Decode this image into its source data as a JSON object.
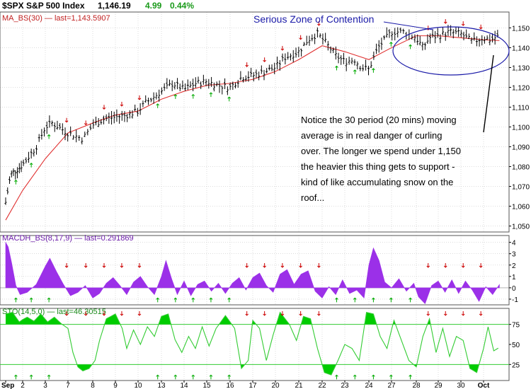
{
  "header": {
    "symbol": "$SPX S&P 500 Index",
    "last": "1,146.19",
    "change": "4.99",
    "change_pct": "0.44%"
  },
  "colors": {
    "background": "#ffffff",
    "grid": "#c8c8c8",
    "price_bar": "#000000",
    "moving_average": "#e03030",
    "macd_fill": "#9b30e8",
    "stochastic": "#33cc33",
    "stochastic_fill": "#00cc00",
    "up_arrow": "#00aa00",
    "down_arrow": "#cc0000",
    "annotation": "#1a1aa8",
    "change_text": "#1a9a1a"
  },
  "annotations": {
    "zone_label": "Serious Zone of Contention",
    "note_lines": [
      "Notice the 30 period (20 mins) moving",
      "average is in real danger of curling",
      "over.  The longer we spend under 1,150",
      "the heavier this thing gets to support -",
      "kind of like accumulating snow on the",
      "roof..."
    ]
  },
  "chart_data": [
    {
      "type": "ohlc",
      "panel": "price",
      "legend": "MA_BS(30) — last=1,143.5907",
      "y_ticks": [
        "1,150",
        "1,140",
        "1,130",
        "1,120",
        "1,110",
        "1,100",
        "1,090",
        "1,080",
        "1,070",
        "1,060",
        "1,050"
      ],
      "y_tick_values": [
        1150,
        1140,
        1130,
        1120,
        1110,
        1100,
        1090,
        1080,
        1070,
        1060,
        1050
      ],
      "ylim": [
        1047,
        1158
      ],
      "x_tick_labels": [
        "Sep",
        "2",
        "3",
        "7",
        "8",
        "9",
        "10",
        "13",
        "14",
        "15",
        "16",
        "17",
        "20",
        "21",
        "22",
        "23",
        "24",
        "27",
        "28",
        "29",
        "30",
        "Oct"
      ],
      "key_points": [
        [
          0,
          1062
        ],
        [
          0.3,
          1076
        ],
        [
          1.0,
          1081
        ],
        [
          1.6,
          1090
        ],
        [
          2.0,
          1100
        ],
        [
          2.3,
          1102
        ],
        [
          3.0,
          1097
        ],
        [
          3.6,
          1094
        ],
        [
          4.0,
          1101
        ],
        [
          4.5,
          1104
        ],
        [
          5.0,
          1105
        ],
        [
          5.5,
          1106
        ],
        [
          6.0,
          1108
        ],
        [
          6.3,
          1112
        ],
        [
          7.0,
          1118
        ],
        [
          7.5,
          1122
        ],
        [
          8.0,
          1119
        ],
        [
          8.5,
          1122
        ],
        [
          9.0,
          1123
        ],
        [
          9.5,
          1121
        ],
        [
          10.0,
          1120
        ],
        [
          10.5,
          1125
        ],
        [
          11.0,
          1126
        ],
        [
          11.3,
          1127
        ],
        [
          12.0,
          1130
        ],
        [
          12.4,
          1135
        ],
        [
          13.0,
          1138
        ],
        [
          13.4,
          1144
        ],
        [
          13.8,
          1147
        ],
        [
          14.2,
          1142
        ],
        [
          14.6,
          1136
        ],
        [
          15.0,
          1133
        ],
        [
          15.4,
          1134
        ],
        [
          15.7,
          1130
        ],
        [
          16.0,
          1129
        ],
        [
          16.4,
          1140
        ],
        [
          17.0,
          1148
        ],
        [
          17.5,
          1148
        ],
        [
          18.0,
          1145
        ],
        [
          18.3,
          1140
        ],
        [
          18.6,
          1145
        ],
        [
          19.0,
          1146
        ],
        [
          19.5,
          1148
        ],
        [
          20.0,
          1147
        ],
        [
          20.5,
          1143
        ],
        [
          21.0,
          1145
        ],
        [
          21.3,
          1144
        ],
        [
          21.7,
          1146
        ]
      ],
      "moving_average": [
        [
          0,
          1053
        ],
        [
          1,
          1068
        ],
        [
          2,
          1084
        ],
        [
          3,
          1097
        ],
        [
          4,
          1102
        ],
        [
          5,
          1106
        ],
        [
          6,
          1108
        ],
        [
          7,
          1114
        ],
        [
          8,
          1118
        ],
        [
          9,
          1121
        ],
        [
          10,
          1122
        ],
        [
          11,
          1124
        ],
        [
          12,
          1128
        ],
        [
          13,
          1134
        ],
        [
          14,
          1141
        ],
        [
          15,
          1138
        ],
        [
          16,
          1134
        ],
        [
          17,
          1140
        ],
        [
          18,
          1146
        ],
        [
          19,
          1146
        ],
        [
          20,
          1145
        ],
        [
          21,
          1144
        ],
        [
          21.7,
          1143.59
        ]
      ]
    },
    {
      "type": "area",
      "panel": "macd",
      "legend": "MACDH_BS(8,17,9) — last=0.291869",
      "y_ticks": [
        "4",
        "3",
        "2",
        "1",
        "0",
        "-1"
      ],
      "y_tick_values": [
        4,
        3,
        2,
        1,
        0,
        -1
      ],
      "ylim": [
        -1.5,
        4.6
      ],
      "key_points": [
        [
          0,
          4.0
        ],
        [
          0.15,
          3.6
        ],
        [
          0.35,
          2.2
        ],
        [
          0.6,
          0.2
        ],
        [
          0.85,
          -0.6
        ],
        [
          1.2,
          -0.4
        ],
        [
          1.6,
          0.3
        ],
        [
          2.0,
          1.9
        ],
        [
          2.2,
          2.6
        ],
        [
          2.5,
          1.4
        ],
        [
          2.8,
          0.3
        ],
        [
          3.1,
          -0.7
        ],
        [
          3.4,
          -0.4
        ],
        [
          3.7,
          0.2
        ],
        [
          4.0,
          -0.9
        ],
        [
          4.3,
          -0.5
        ],
        [
          4.6,
          0.4
        ],
        [
          4.9,
          0.9
        ],
        [
          5.2,
          0.2
        ],
        [
          5.5,
          -0.6
        ],
        [
          5.8,
          0.5
        ],
        [
          6.1,
          1.0
        ],
        [
          6.4,
          0.1
        ],
        [
          6.7,
          -0.6
        ],
        [
          7.0,
          1.0
        ],
        [
          7.2,
          2.4
        ],
        [
          7.45,
          0.8
        ],
        [
          7.7,
          -0.6
        ],
        [
          8.0,
          0.6
        ],
        [
          8.3,
          -0.7
        ],
        [
          8.6,
          0.3
        ],
        [
          8.9,
          0.6
        ],
        [
          9.2,
          -0.3
        ],
        [
          9.5,
          0.4
        ],
        [
          9.8,
          -0.5
        ],
        [
          10.1,
          0.4
        ],
        [
          10.4,
          0.9
        ],
        [
          10.7,
          -0.2
        ],
        [
          11.0,
          0.9
        ],
        [
          11.3,
          1.3
        ],
        [
          11.6,
          0.2
        ],
        [
          11.9,
          -0.4
        ],
        [
          12.2,
          1.2
        ],
        [
          12.5,
          1.6
        ],
        [
          12.8,
          0.3
        ],
        [
          13.1,
          1.2
        ],
        [
          13.4,
          1.5
        ],
        [
          13.7,
          -0.3
        ],
        [
          14.0,
          -0.9
        ],
        [
          14.3,
          0.1
        ],
        [
          14.6,
          -0.6
        ],
        [
          14.9,
          0.7
        ],
        [
          15.2,
          -0.5
        ],
        [
          15.5,
          -0.2
        ],
        [
          15.8,
          -0.9
        ],
        [
          16.0,
          2.0
        ],
        [
          16.2,
          3.5
        ],
        [
          16.45,
          2.4
        ],
        [
          16.7,
          0.5
        ],
        [
          17.0,
          0.0
        ],
        [
          17.3,
          0.8
        ],
        [
          17.6,
          -0.3
        ],
        [
          17.9,
          0.4
        ],
        [
          18.1,
          -0.8
        ],
        [
          18.4,
          -1.4
        ],
        [
          18.7,
          0.2
        ],
        [
          19.0,
          0.6
        ],
        [
          19.3,
          -0.4
        ],
        [
          19.6,
          0.7
        ],
        [
          19.9,
          -0.5
        ],
        [
          20.2,
          0.6
        ],
        [
          20.5,
          -0.2
        ],
        [
          20.8,
          -1.2
        ],
        [
          21.1,
          0.1
        ],
        [
          21.4,
          -0.6
        ],
        [
          21.7,
          0.29
        ]
      ]
    },
    {
      "type": "line",
      "panel": "stochastic",
      "legend": "STO(14,5,0) — last=46.30515",
      "y_ticks": [
        "75",
        "50",
        "25"
      ],
      "y_tick_values": [
        75,
        50,
        25
      ],
      "levels": [
        75,
        25
      ],
      "ylim": [
        5,
        95
      ],
      "key_points": [
        [
          0,
          88
        ],
        [
          0.4,
          90
        ],
        [
          0.8,
          78
        ],
        [
          1.2,
          84
        ],
        [
          1.5,
          79
        ],
        [
          1.8,
          88
        ],
        [
          2.1,
          78
        ],
        [
          2.4,
          84
        ],
        [
          2.7,
          76
        ],
        [
          3.0,
          70
        ],
        [
          3.2,
          40
        ],
        [
          3.4,
          22
        ],
        [
          3.6,
          17
        ],
        [
          3.85,
          20
        ],
        [
          4.1,
          30
        ],
        [
          4.3,
          55
        ],
        [
          4.6,
          82
        ],
        [
          5.0,
          88
        ],
        [
          5.3,
          70
        ],
        [
          5.5,
          45
        ],
        [
          5.8,
          68
        ],
        [
          6.1,
          50
        ],
        [
          6.4,
          72
        ],
        [
          6.7,
          60
        ],
        [
          7.0,
          85
        ],
        [
          7.3,
          88
        ],
        [
          7.6,
          56
        ],
        [
          7.9,
          40
        ],
        [
          8.2,
          60
        ],
        [
          8.5,
          45
        ],
        [
          8.8,
          72
        ],
        [
          9.1,
          48
        ],
        [
          9.4,
          70
        ],
        [
          9.8,
          86
        ],
        [
          10.2,
          70
        ],
        [
          10.5,
          20
        ],
        [
          10.8,
          30
        ],
        [
          11.0,
          80
        ],
        [
          11.3,
          70
        ],
        [
          11.6,
          30
        ],
        [
          11.9,
          62
        ],
        [
          12.2,
          90
        ],
        [
          12.6,
          75
        ],
        [
          12.9,
          55
        ],
        [
          13.2,
          85
        ],
        [
          13.5,
          82
        ],
        [
          13.8,
          45
        ],
        [
          14.1,
          15
        ],
        [
          14.4,
          12
        ],
        [
          14.7,
          30
        ],
        [
          15.0,
          50
        ],
        [
          15.3,
          45
        ],
        [
          15.6,
          30
        ],
        [
          15.9,
          90
        ],
        [
          16.2,
          88
        ],
        [
          16.5,
          60
        ],
        [
          16.8,
          45
        ],
        [
          17.1,
          80
        ],
        [
          17.4,
          55
        ],
        [
          17.7,
          30
        ],
        [
          18.0,
          22
        ],
        [
          18.3,
          60
        ],
        [
          18.6,
          82
        ],
        [
          18.9,
          40
        ],
        [
          19.2,
          70
        ],
        [
          19.5,
          35
        ],
        [
          19.8,
          60
        ],
        [
          20.1,
          55
        ],
        [
          20.4,
          20
        ],
        [
          20.7,
          15
        ],
        [
          21.0,
          45
        ],
        [
          21.2,
          72
        ],
        [
          21.45,
          42
        ],
        [
          21.7,
          46.3
        ]
      ]
    }
  ]
}
